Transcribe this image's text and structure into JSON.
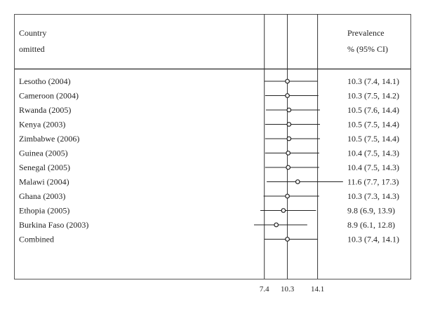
{
  "chart_data": {
    "type": "forest",
    "header": {
      "left_line1": "Country",
      "left_line2": "omitted",
      "right_line1": "Prevalence",
      "right_line2": "% (95% CI)"
    },
    "rows": [
      {
        "label": "Lesotho (2004)",
        "estimate": 10.3,
        "lower": 7.4,
        "upper": 14.1,
        "ci_text": "10.3 (7.4, 14.1)"
      },
      {
        "label": "Cameroon (2004)",
        "estimate": 10.3,
        "lower": 7.5,
        "upper": 14.2,
        "ci_text": "10.3 (7.5, 14.2)"
      },
      {
        "label": "Rwanda (2005)",
        "estimate": 10.5,
        "lower": 7.6,
        "upper": 14.4,
        "ci_text": "10.5 (7.6, 14.4)"
      },
      {
        "label": "Kenya (2003)",
        "estimate": 10.5,
        "lower": 7.5,
        "upper": 14.4,
        "ci_text": "10.5 (7.5, 14.4)"
      },
      {
        "label": "Zimbabwe (2006)",
        "estimate": 10.5,
        "lower": 7.5,
        "upper": 14.4,
        "ci_text": "10.5 (7.5, 14.4)"
      },
      {
        "label": "Guinea (2005)",
        "estimate": 10.4,
        "lower": 7.5,
        "upper": 14.3,
        "ci_text": "10.4 (7.5, 14.3)"
      },
      {
        "label": "Senegal (2005)",
        "estimate": 10.4,
        "lower": 7.5,
        "upper": 14.3,
        "ci_text": "10.4 (7.5, 14.3)"
      },
      {
        "label": "Malawi  (2004)",
        "estimate": 11.6,
        "lower": 7.7,
        "upper": 17.3,
        "ci_text": "11.6 (7.7, 17.3)"
      },
      {
        "label": "Ghana (2003)",
        "estimate": 10.3,
        "lower": 7.3,
        "upper": 14.3,
        "ci_text": "10.3 (7.3, 14.3)"
      },
      {
        "label": "Ethopia (2005)",
        "estimate": 9.8,
        "lower": 6.9,
        "upper": 13.9,
        "ci_text": "9.8 (6.9, 13.9)"
      },
      {
        "label": "Burkina Faso (2003)",
        "estimate": 8.9,
        "lower": 6.1,
        "upper": 12.8,
        "ci_text": "8.9 (6.1, 12.8)"
      },
      {
        "label": "Combined",
        "estimate": 10.3,
        "lower": 7.4,
        "upper": 14.1,
        "ci_text": "10.3 (7.4, 14.1)"
      }
    ],
    "reference_lines": [
      7.4,
      10.3,
      14.1
    ],
    "tick_labels": [
      "7.4",
      "10.3",
      "14.1"
    ],
    "x_domain": [
      6.1,
      14.4
    ],
    "grid": false
  }
}
